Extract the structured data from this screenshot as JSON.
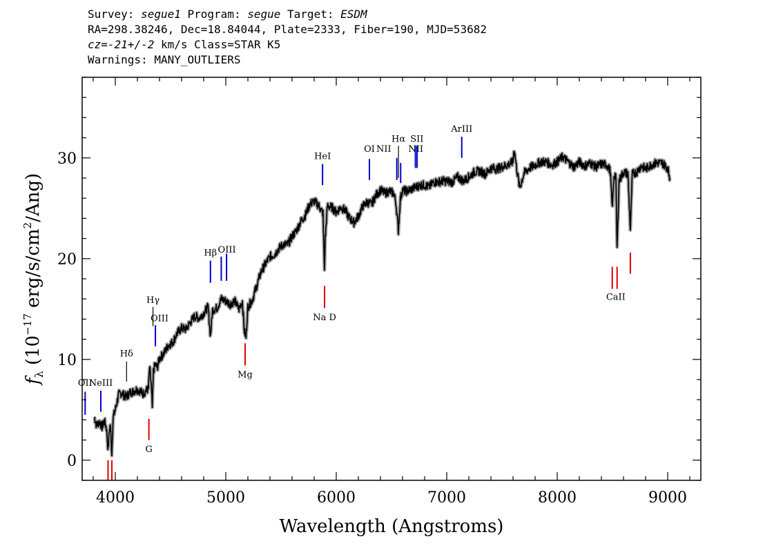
{
  "header": {
    "survey_label": "Survey:",
    "survey": "segue1",
    "program_label": "Program:",
    "program": "segue",
    "target_label": "Target:",
    "target": "ESDM",
    "line2": "RA=298.38246, Dec=18.84044, Plate=2333, Fiber=190, MJD=53682",
    "cz_label": "cz=",
    "cz_value": "-21+/-2",
    "cz_rest": " km/s Class=STAR K5",
    "warnings": "Warnings: MANY_OUTLIERS"
  },
  "chart_data": {
    "type": "line",
    "xlabel": "Wavelength (Angstroms)",
    "ylabel": "f_λ (10^-17 erg/s/cm^2/Ang)",
    "xlim": [
      3700,
      9300
    ],
    "ylim": [
      -2,
      38
    ],
    "x_ticks": [
      4000,
      5000,
      6000,
      7000,
      8000,
      9000
    ],
    "y_ticks": [
      0,
      10,
      20,
      30
    ],
    "grid": false,
    "colors": {
      "spectrum": "#000000",
      "error": "#a0a0a0",
      "emission": "#0000cc",
      "absorption": "#dd0000",
      "other": "#000000"
    },
    "series": [
      {
        "points": [
          [
            3810,
            4.3
          ],
          [
            3830,
            3.5
          ],
          [
            3860,
            3.8
          ],
          [
            3880,
            3.3
          ],
          [
            3900,
            3.9
          ],
          [
            3920,
            3.2
          ],
          [
            3935,
            1.0
          ],
          [
            3945,
            2.8
          ],
          [
            3955,
            3.6
          ],
          [
            3968,
            0.7
          ],
          [
            3980,
            4.2
          ],
          [
            4000,
            5.0
          ],
          [
            4030,
            6.5
          ],
          [
            4060,
            6.7
          ],
          [
            4080,
            6.4
          ],
          [
            4100,
            6.3
          ],
          [
            4130,
            6.7
          ],
          [
            4160,
            6.8
          ],
          [
            4190,
            7.0
          ],
          [
            4220,
            6.9
          ],
          [
            4250,
            6.6
          ],
          [
            4280,
            6.9
          ],
          [
            4300,
            7.1
          ],
          [
            4310,
            9.2
          ],
          [
            4325,
            7.5
          ],
          [
            4335,
            5.2
          ],
          [
            4345,
            8.8
          ],
          [
            4360,
            9.5
          ],
          [
            4380,
            9.2
          ],
          [
            4400,
            10.1
          ],
          [
            4440,
            10.6
          ],
          [
            4480,
            11.4
          ],
          [
            4520,
            11.7
          ],
          [
            4560,
            12.6
          ],
          [
            4600,
            13.1
          ],
          [
            4640,
            13.0
          ],
          [
            4680,
            13.7
          ],
          [
            4720,
            14.3
          ],
          [
            4760,
            14.1
          ],
          [
            4800,
            14.6
          ],
          [
            4840,
            15.2
          ],
          [
            4861,
            12.3
          ],
          [
            4880,
            14.9
          ],
          [
            4920,
            15.1
          ],
          [
            4960,
            16.0
          ],
          [
            5000,
            15.8
          ],
          [
            5040,
            15.5
          ],
          [
            5080,
            15.8
          ],
          [
            5120,
            15.0
          ],
          [
            5150,
            15.8
          ],
          [
            5168,
            12.8
          ],
          [
            5183,
            12.2
          ],
          [
            5200,
            15.2
          ],
          [
            5240,
            15.9
          ],
          [
            5280,
            17.3
          ],
          [
            5320,
            18.7
          ],
          [
            5360,
            19.5
          ],
          [
            5400,
            20.2
          ],
          [
            5440,
            20.4
          ],
          [
            5480,
            21.0
          ],
          [
            5520,
            21.4
          ],
          [
            5560,
            21.4
          ],
          [
            5600,
            22.2
          ],
          [
            5640,
            22.8
          ],
          [
            5680,
            23.7
          ],
          [
            5720,
            24.3
          ],
          [
            5760,
            25.4
          ],
          [
            5800,
            25.7
          ],
          [
            5840,
            25.3
          ],
          [
            5880,
            24.5
          ],
          [
            5893,
            18.8
          ],
          [
            5900,
            22.0
          ],
          [
            5920,
            25.2
          ],
          [
            5960,
            25.1
          ],
          [
            6000,
            24.6
          ],
          [
            6040,
            25.1
          ],
          [
            6080,
            24.8
          ],
          [
            6120,
            24.0
          ],
          [
            6160,
            23.6
          ],
          [
            6200,
            24.2
          ],
          [
            6240,
            25.2
          ],
          [
            6280,
            25.6
          ],
          [
            6320,
            25.4
          ],
          [
            6360,
            26.3
          ],
          [
            6400,
            26.8
          ],
          [
            6440,
            26.5
          ],
          [
            6480,
            26.7
          ],
          [
            6520,
            26.5
          ],
          [
            6540,
            25.6
          ],
          [
            6562,
            22.8
          ],
          [
            6580,
            25.9
          ],
          [
            6600,
            26.8
          ],
          [
            6640,
            26.7
          ],
          [
            6680,
            26.9
          ],
          [
            6720,
            27.1
          ],
          [
            6760,
            27.3
          ],
          [
            6800,
            27.3
          ],
          [
            6840,
            27.1
          ],
          [
            6880,
            27.6
          ],
          [
            6920,
            27.6
          ],
          [
            6960,
            27.7
          ],
          [
            7000,
            27.7
          ],
          [
            7050,
            27.6
          ],
          [
            7100,
            28.1
          ],
          [
            7150,
            27.7
          ],
          [
            7200,
            28.1
          ],
          [
            7250,
            28.6
          ],
          [
            7300,
            28.7
          ],
          [
            7350,
            28.4
          ],
          [
            7400,
            29.0
          ],
          [
            7450,
            28.9
          ],
          [
            7500,
            29.1
          ],
          [
            7550,
            29.3
          ],
          [
            7600,
            29.6
          ],
          [
            7610,
            31.0
          ],
          [
            7630,
            29.2
          ],
          [
            7660,
            27.0
          ],
          [
            7700,
            28.5
          ],
          [
            7750,
            29.0
          ],
          [
            7800,
            29.3
          ],
          [
            7850,
            29.6
          ],
          [
            7900,
            29.6
          ],
          [
            7950,
            29.3
          ],
          [
            8000,
            29.6
          ],
          [
            8050,
            30.1
          ],
          [
            8100,
            29.6
          ],
          [
            8150,
            29.1
          ],
          [
            8200,
            29.6
          ],
          [
            8250,
            29.2
          ],
          [
            8300,
            29.5
          ],
          [
            8350,
            29.1
          ],
          [
            8400,
            29.4
          ],
          [
            8450,
            29.3
          ],
          [
            8480,
            28.7
          ],
          [
            8498,
            25.0
          ],
          [
            8515,
            28.3
          ],
          [
            8530,
            28.3
          ],
          [
            8542,
            21.0
          ],
          [
            8560,
            27.7
          ],
          [
            8600,
            28.6
          ],
          [
            8640,
            28.4
          ],
          [
            8662,
            22.9
          ],
          [
            8680,
            28.4
          ],
          [
            8720,
            28.6
          ],
          [
            8760,
            29.2
          ],
          [
            8800,
            28.9
          ],
          [
            8850,
            29.3
          ],
          [
            8900,
            29.5
          ],
          [
            8950,
            29.5
          ],
          [
            9000,
            29.0
          ],
          [
            9020,
            28.0
          ]
        ]
      }
    ],
    "line_markers": [
      {
        "label": "OII",
        "x": 3727,
        "y0": 4.5,
        "y1": 6.8,
        "color": "emission",
        "lx": 3727,
        "ly": 7.4
      },
      {
        "label": "NeIII",
        "x": 3869,
        "y0": 4.8,
        "y1": 6.9,
        "color": "emission",
        "lx": 3869,
        "ly": 7.4
      },
      {
        "label": "Hδ",
        "x": 4102,
        "y0": 7.8,
        "y1": 9.8,
        "color": "other",
        "lx": 4102,
        "ly": 10.3
      },
      {
        "label": "Hγ",
        "x": 4341,
        "y0": 13.3,
        "y1": 15.2,
        "color": "other",
        "lx": 4341,
        "ly": 15.6
      },
      {
        "label": "OIII",
        "x": 4363,
        "y0": 11.3,
        "y1": 13.4,
        "color": "emission",
        "lx": 4400,
        "ly": 13.8
      },
      {
        "label": "Hβ",
        "x": 4861,
        "y0": 17.6,
        "y1": 19.8,
        "color": "emission",
        "lx": 4861,
        "ly": 20.3
      },
      {
        "label": "OIII",
        "x": 4959,
        "y0": 17.8,
        "y1": 20.2,
        "color": "emission",
        "lx": 5010,
        "ly": 20.6
      },
      {
        "label": "OIII",
        "x": 5007,
        "y0": 17.8,
        "y1": 20.5,
        "color": "emission",
        "lx": null,
        "ly": null
      },
      {
        "label": "HeI",
        "x": 5876,
        "y0": 27.3,
        "y1": 29.4,
        "color": "emission",
        "lx": 5876,
        "ly": 29.9
      },
      {
        "label": "OI",
        "x": 6300,
        "y0": 27.8,
        "y1": 29.9,
        "color": "emission",
        "lx": 6300,
        "ly": 30.6
      },
      {
        "label": "NII",
        "x": 6548,
        "y0": 27.8,
        "y1": 30.0,
        "color": "emission",
        "lx": 6430,
        "ly": 30.6
      },
      {
        "label": "Hα",
        "x": 6563,
        "y0": 28.0,
        "y1": 31.2,
        "color": "other",
        "lx": 6563,
        "ly": 31.6
      },
      {
        "label": "NII",
        "x": 6583,
        "y0": 27.5,
        "y1": 29.5,
        "color": "emission",
        "lx": 6720,
        "ly": 30.6
      },
      {
        "label": "SII",
        "x": 6716,
        "y0": 29.0,
        "y1": 31.2,
        "color": "emission",
        "lx": 6730,
        "ly": 31.6
      },
      {
        "label": "SII",
        "x": 6731,
        "y0": 29.0,
        "y1": 31.2,
        "color": "emission",
        "lx": null,
        "ly": null
      },
      {
        "label": "ArIII",
        "x": 7136,
        "y0": 30.0,
        "y1": 32.1,
        "color": "emission",
        "lx": 7136,
        "ly": 32.6
      },
      {
        "label": "",
        "x": 3934,
        "y0": -2,
        "y1": 0,
        "color": "absorption",
        "lx": null,
        "ly": null
      },
      {
        "label": "",
        "x": 3969,
        "y0": -2,
        "y1": 0,
        "color": "absorption",
        "lx": null,
        "ly": null
      },
      {
        "label": "G",
        "x": 4304,
        "y0": 2.0,
        "y1": 4.1,
        "color": "absorption",
        "lx": 4304,
        "ly": 0.8
      },
      {
        "label": "Mg",
        "x": 5175,
        "y0": 9.4,
        "y1": 11.6,
        "color": "absorption",
        "lx": 5175,
        "ly": 8.2
      },
      {
        "label": "Na D",
        "x": 5894,
        "y0": 15.1,
        "y1": 17.3,
        "color": "absorption",
        "lx": 5894,
        "ly": 13.9
      },
      {
        "label": "CaII",
        "x": 8498,
        "y0": 17.0,
        "y1": 19.2,
        "color": "absorption",
        "lx": 8530,
        "ly": 15.9
      },
      {
        "label": "",
        "x": 8542,
        "y0": 17.0,
        "y1": 19.2,
        "color": "absorption",
        "lx": null,
        "ly": null
      },
      {
        "label": "",
        "x": 8662,
        "y0": 18.5,
        "y1": 20.6,
        "color": "absorption",
        "lx": null,
        "ly": null
      }
    ]
  }
}
